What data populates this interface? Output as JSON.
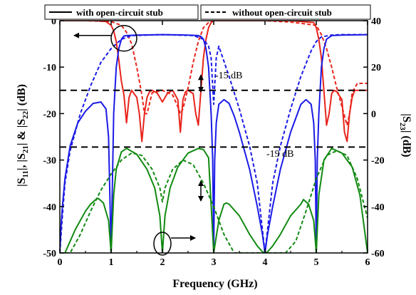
{
  "chart_data": {
    "type": "line",
    "title": "",
    "xlabel": "Frequency (GHz)",
    "ylabel_left_parts": [
      "|S",
      "11",
      "|, |S",
      "21",
      "| & |S",
      "22",
      "| (dB)"
    ],
    "ylabel_right_parts": [
      "|S",
      "23",
      "| (dB)"
    ],
    "xlim": [
      0,
      6
    ],
    "ylim_left": [
      -50,
      0
    ],
    "ylim_right": [
      -60,
      40
    ],
    "x_ticks": [
      "0",
      "1",
      "2",
      "3",
      "4",
      "5",
      "6"
    ],
    "y_ticks_left": [
      "0",
      "-10",
      "-20",
      "-30",
      "-40",
      "-50"
    ],
    "y_ticks_right": [
      "40",
      "20",
      "0",
      "-20",
      "-40",
      "-60"
    ],
    "grid": false,
    "legend": {
      "placement": "top",
      "items": [
        {
          "label": "with open-circuit stub",
          "style": "solid"
        },
        {
          "label": "without open-circuit stub",
          "style": "dashed"
        }
      ]
    },
    "annotations": [
      {
        "text": "-15 dB",
        "x": 2.05,
        "y": -13
      },
      {
        "text": "-19 dB",
        "x": 3.7,
        "y": -30.5
      }
    ],
    "reference_lines": [
      {
        "axis": "left",
        "y": -15,
        "style": "dashed"
      },
      {
        "axis": "left",
        "y": -27.2,
        "style": "dashed"
      }
    ],
    "colors": {
      "red": "#e8241b",
      "blue": "#1a1ae6",
      "green": "#118a11",
      "axis": "#000000"
    },
    "series": [
      {
        "color": "red",
        "style": "solid",
        "axis": "left",
        "x": [
          0.0,
          0.35,
          0.7,
          0.9,
          1.0,
          1.05,
          1.1,
          1.15,
          1.2,
          1.25,
          1.3,
          1.35,
          1.4,
          1.5,
          1.55,
          1.6,
          1.65,
          1.7,
          1.75,
          1.8,
          1.9,
          2.0,
          2.1,
          2.2,
          2.3,
          2.35,
          2.4,
          2.45,
          2.5,
          2.6,
          2.65,
          2.7,
          2.75,
          2.8,
          2.85,
          2.9,
          2.95,
          3.0,
          3.5,
          4.0,
          4.5,
          4.95,
          5.0,
          5.05,
          5.1,
          5.15,
          5.2,
          5.25,
          5.3,
          5.35,
          5.4,
          5.5,
          5.55,
          5.6,
          5.65,
          5.7,
          5.75,
          5.8,
          5.9,
          6.0
        ],
        "y": [
          0,
          0,
          0,
          -0.2,
          -1.0,
          -2.2,
          -4.5,
          -8.5,
          -13.0,
          -16.0,
          -22.0,
          -16.5,
          -15.0,
          -16.5,
          -20.0,
          -26.0,
          -20.0,
          -16.5,
          -15.3,
          -15.0,
          -15.6,
          -17.5,
          -15.6,
          -15.0,
          -17.0,
          -24.0,
          -17.0,
          -15.3,
          -15.0,
          -15.7,
          -20.0,
          -22.5,
          -15.2,
          -8.0,
          -4.0,
          -1.5,
          -0.4,
          0,
          0,
          0,
          0,
          -0.4,
          -1.5,
          -4.0,
          -8.0,
          -15.2,
          -22.5,
          -20.0,
          -15.7,
          -15.0,
          -15.3,
          -17.0,
          -24.0,
          -26.0,
          -20.0,
          -16.5,
          -15.0,
          -15.0,
          -15.0,
          -15.0
        ]
      },
      {
        "color": "red",
        "style": "dashed",
        "axis": "left",
        "x": [
          0.0,
          0.5,
          1.0,
          1.2,
          1.3,
          1.4,
          1.5,
          1.6,
          1.65,
          1.7,
          1.8,
          2.0,
          2.2,
          2.3,
          2.35,
          2.4,
          2.5,
          2.6,
          2.7,
          2.8,
          2.9,
          3.0,
          3.5,
          4.0,
          4.5,
          5.0,
          5.1,
          5.2,
          5.3,
          5.4,
          5.5,
          5.6,
          5.65,
          5.7,
          5.8,
          5.9,
          6.0
        ],
        "y": [
          0,
          0,
          -0.2,
          -1.0,
          -2.5,
          -5.0,
          -10.0,
          -16.0,
          -20.0,
          -20.0,
          -15.5,
          -15.0,
          -16.0,
          -18.5,
          -20.0,
          -19.0,
          -14.5,
          -9.0,
          -4.5,
          -1.5,
          -0.4,
          0,
          0,
          0,
          -0.3,
          -1.0,
          -3.0,
          -6.0,
          -10.0,
          -14.5,
          -18.5,
          -22.5,
          -20.0,
          -15.5,
          -13.5,
          -13.5,
          -13.5
        ]
      },
      {
        "color": "blue",
        "style": "solid",
        "axis": "left",
        "x": [
          0.0,
          0.02,
          0.05,
          0.1,
          0.2,
          0.35,
          0.5,
          0.65,
          0.8,
          0.9,
          0.95,
          1.0,
          1.05,
          1.1,
          1.15,
          1.2,
          1.25,
          1.3,
          1.5,
          2.0,
          2.5,
          2.7,
          2.75,
          2.8,
          2.85,
          2.9,
          2.95,
          2.98,
          3.0,
          3.02,
          3.05,
          3.1,
          3.2,
          3.3,
          3.4,
          3.5,
          3.7,
          3.85,
          3.95,
          4.0,
          4.05,
          4.15,
          4.3,
          4.5,
          4.7,
          4.8,
          4.9,
          4.95,
          4.98,
          5.0,
          5.02,
          5.05,
          5.1,
          5.15,
          5.2,
          5.3,
          5.5,
          6.0
        ],
        "y": [
          -50,
          -45,
          -40,
          -34.0,
          -27.0,
          -22.0,
          -19.5,
          -17.8,
          -17.5,
          -19.0,
          -25.0,
          -50,
          -20.0,
          -10.0,
          -6.0,
          -4.0,
          -3.3,
          -3.2,
          -3.1,
          -3.0,
          -3.1,
          -3.2,
          -3.4,
          -4.0,
          -6.0,
          -10.0,
          -20.0,
          -30.0,
          -50,
          -30.0,
          -22.0,
          -18.0,
          -17.0,
          -17.8,
          -20.5,
          -24.0,
          -32.0,
          -40.0,
          -46.0,
          -50,
          -46.0,
          -40.0,
          -32.0,
          -24.0,
          -18.0,
          -17.0,
          -18.0,
          -22.0,
          -30.0,
          -50,
          -30.0,
          -20.0,
          -10.0,
          -6.0,
          -4.0,
          -3.2,
          -3.1,
          -3.0
        ]
      },
      {
        "color": "blue",
        "style": "dashed",
        "axis": "left",
        "x": [
          0.0,
          0.05,
          0.1,
          0.2,
          0.4,
          0.6,
          0.8,
          1.0,
          1.2,
          1.4,
          2.0,
          2.6,
          2.8,
          2.9,
          2.95,
          3.0,
          3.05,
          3.1,
          3.3,
          3.5,
          3.7,
          3.85,
          4.0,
          4.15,
          4.3,
          4.5,
          4.7,
          4.9,
          5.0,
          5.1,
          5.3,
          5.5,
          6.0
        ],
        "y": [
          -50,
          -42.0,
          -35.0,
          -28.0,
          -20.0,
          -14.0,
          -9.0,
          -6.0,
          -4.0,
          -3.2,
          -3.0,
          -3.2,
          -4.0,
          -5.5,
          -8.0,
          -18.0,
          -8.0,
          -5.5,
          -12.0,
          -19.0,
          -27.0,
          -35.0,
          -50,
          -35.0,
          -27.0,
          -19.0,
          -12.0,
          -6.5,
          -4.5,
          -3.5,
          -3.1,
          -3.0,
          -3.0
        ]
      },
      {
        "color": "green",
        "style": "solid",
        "axis": "right",
        "x": [
          0.0,
          0.1,
          0.3,
          0.5,
          0.6,
          0.7,
          0.75,
          0.85,
          0.95,
          1.0,
          1.05,
          1.1,
          1.2,
          1.3,
          1.5,
          1.7,
          1.85,
          1.95,
          2.0,
          2.05,
          2.15,
          2.3,
          2.5,
          2.7,
          2.8,
          2.9,
          3.0,
          3.1,
          3.2,
          3.25,
          3.3,
          3.5,
          3.7,
          3.85,
          3.95,
          4.0,
          4.05,
          4.15,
          4.3,
          4.5,
          4.7,
          4.75,
          4.85,
          4.95,
          5.0,
          5.05,
          5.15,
          5.3,
          5.5,
          5.7,
          5.85,
          6.0
        ],
        "y": [
          -60,
          -60.0,
          -50.0,
          -42.0,
          -39.0,
          -37.0,
          -36.5,
          -38.5,
          -46.0,
          -60,
          -35.0,
          -24.0,
          -16.5,
          -15.0,
          -17.5,
          -24.0,
          -32.0,
          -44.0,
          -60,
          -44.0,
          -32.0,
          -23.0,
          -17.0,
          -15.0,
          -15.5,
          -19.0,
          -60,
          -46.0,
          -39.0,
          -38.5,
          -39.0,
          -44.0,
          -52.0,
          -57.0,
          -59.5,
          -60,
          -59.5,
          -57.0,
          -52.0,
          -44.0,
          -39.0,
          -37.0,
          -39.0,
          -46.0,
          -60,
          -35.0,
          -20.0,
          -15.0,
          -17.0,
          -23.0,
          -35.0,
          -60
        ]
      },
      {
        "color": "green",
        "style": "dashed",
        "axis": "right",
        "x": [
          0.0,
          0.2,
          0.4,
          0.6,
          0.8,
          1.0,
          1.2,
          1.4,
          1.6,
          1.8,
          1.95,
          2.0,
          2.05,
          2.2,
          2.4,
          2.6,
          2.8,
          3.0,
          3.2,
          3.4,
          3.6,
          3.8,
          4.0,
          4.2,
          4.4,
          4.6,
          4.8,
          5.0,
          5.2,
          5.4,
          5.6,
          5.8,
          6.0
        ],
        "y": [
          -60,
          -60.0,
          -52.0,
          -42.0,
          -33.0,
          -26.0,
          -20.0,
          -17.0,
          -18.0,
          -24.0,
          -32.0,
          -38.0,
          -32.0,
          -24.0,
          -20.0,
          -22.0,
          -30.0,
          -40.0,
          -52.0,
          -60.0,
          -60.0,
          -60.0,
          -60,
          -60.0,
          -60.0,
          -55.0,
          -42.0,
          -28.0,
          -18.0,
          -16.0,
          -18.0,
          -28.0,
          -45.0
        ]
      }
    ]
  }
}
